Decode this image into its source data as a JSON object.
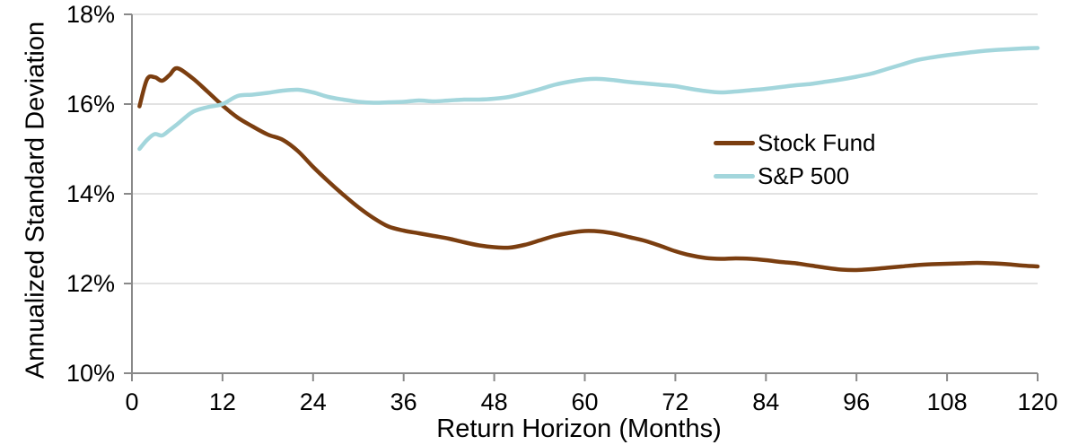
{
  "colors": {
    "stock_fund": "#7B3E10",
    "sp500": "#A3D6DC",
    "gridline": "#D9D9D9",
    "axis": "#898989",
    "text": "#000000"
  },
  "chart_data": {
    "type": "line",
    "title": "",
    "xlabel": "Return Horizon (Months)",
    "ylabel": "Annualized Standard Deviation",
    "xlim": [
      0,
      120
    ],
    "ylim": [
      10,
      18
    ],
    "x_ticks": [
      0,
      12,
      24,
      36,
      48,
      60,
      72,
      84,
      96,
      108,
      120
    ],
    "y_ticks": [
      18,
      16,
      14,
      12,
      10
    ],
    "y_tick_labels": [
      "18%",
      "16%",
      "14%",
      "12%",
      "10%"
    ],
    "grid": "horizontal-only",
    "legend_position": "inside-right",
    "x": [
      1,
      2,
      3,
      4,
      5,
      6,
      8,
      10,
      12,
      14,
      16,
      18,
      20,
      22,
      24,
      26,
      28,
      30,
      32,
      34,
      36,
      38,
      40,
      42,
      44,
      46,
      48,
      50,
      52,
      54,
      56,
      58,
      60,
      62,
      64,
      66,
      68,
      70,
      72,
      74,
      76,
      78,
      80,
      82,
      84,
      86,
      88,
      90,
      92,
      94,
      96,
      98,
      100,
      102,
      104,
      106,
      108,
      110,
      112,
      114,
      116,
      118,
      120
    ],
    "series": [
      {
        "name": "Stock Fund",
        "color": "#7B3E10",
        "values": [
          15.95,
          16.55,
          16.6,
          16.52,
          16.65,
          16.8,
          16.58,
          16.28,
          15.97,
          15.7,
          15.5,
          15.32,
          15.2,
          14.95,
          14.6,
          14.28,
          13.98,
          13.7,
          13.46,
          13.27,
          13.18,
          13.12,
          13.06,
          13.0,
          12.92,
          12.85,
          12.81,
          12.8,
          12.86,
          12.96,
          13.06,
          13.13,
          13.17,
          13.16,
          13.11,
          13.03,
          12.95,
          12.84,
          12.72,
          12.63,
          12.57,
          12.55,
          12.56,
          12.55,
          12.52,
          12.48,
          12.45,
          12.4,
          12.35,
          12.31,
          12.3,
          12.32,
          12.35,
          12.38,
          12.41,
          12.43,
          12.44,
          12.45,
          12.46,
          12.45,
          12.43,
          12.4,
          12.38
        ]
      },
      {
        "name": "S&P 500",
        "color": "#A3D6DC",
        "values": [
          15.0,
          15.2,
          15.33,
          15.3,
          15.42,
          15.55,
          15.82,
          15.93,
          16.0,
          16.18,
          16.21,
          16.25,
          16.3,
          16.32,
          16.26,
          16.16,
          16.1,
          16.05,
          16.03,
          16.04,
          16.05,
          16.08,
          16.06,
          16.08,
          16.1,
          16.1,
          16.12,
          16.16,
          16.24,
          16.33,
          16.43,
          16.5,
          16.55,
          16.56,
          16.53,
          16.49,
          16.46,
          16.43,
          16.4,
          16.34,
          16.29,
          16.26,
          16.28,
          16.31,
          16.34,
          16.38,
          16.42,
          16.45,
          16.5,
          16.55,
          16.61,
          16.68,
          16.78,
          16.88,
          16.98,
          17.04,
          17.09,
          17.13,
          17.17,
          17.2,
          17.22,
          17.24,
          17.25
        ]
      }
    ]
  }
}
